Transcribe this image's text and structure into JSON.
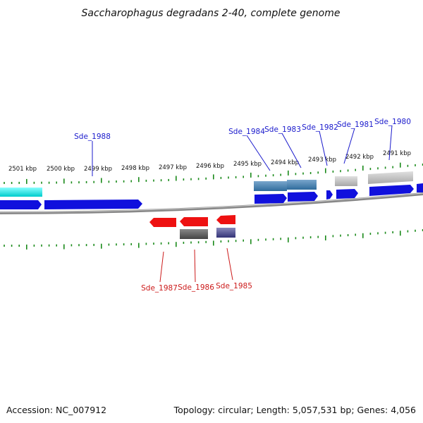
{
  "title": "Saccharophagus degradans 2-40, complete genome",
  "footer": {
    "accession": "Accession: NC_007912",
    "summary": "Topology: circular; Length: 5,057,531 bp; Genes: 4,056"
  },
  "scale_labels": [
    "2501 kbp",
    "2500 kbp",
    "2499 kbp",
    "2498 kbp",
    "2497 kbp",
    "2496 kbp",
    "2495 kbp",
    "2494 kbp",
    "2493 kbp",
    "2492 kbp",
    "2491 kbp"
  ],
  "gene_labels": {
    "forward": [
      "Sde_1988",
      "Sde_1984",
      "Sde_1983",
      "Sde_1982",
      "Sde_1981",
      "Sde_1980"
    ],
    "reverse": [
      "Sde_1987",
      "Sde_1986",
      "Sde_1985"
    ]
  },
  "colors": {
    "forward_label": "#1a1acc",
    "reverse_label": "#cc1a1a",
    "forward_gene": "#1010dd",
    "reverse_gene": "#ee1111",
    "tick": "#1a8a1a",
    "backbone": "#888888"
  }
}
